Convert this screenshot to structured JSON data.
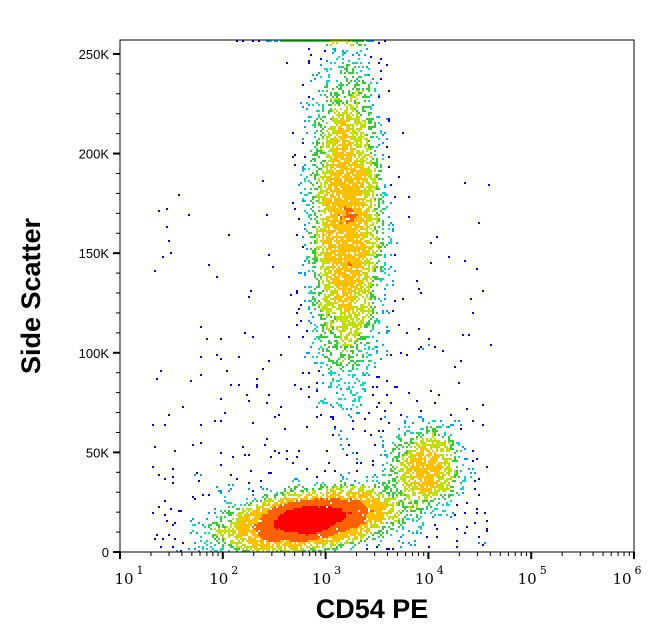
{
  "chart_data": {
    "type": "scatter",
    "subtype": "density-dot-plot",
    "xlabel": "CD54 PE",
    "ylabel": "Side Scatter",
    "x_scale": "log",
    "xlim": [
      10,
      1000000
    ],
    "ylim": [
      0,
      257000
    ],
    "x_ticks": [
      {
        "base": "10",
        "exp": "1"
      },
      {
        "base": "10",
        "exp": "2"
      },
      {
        "base": "10",
        "exp": "3"
      },
      {
        "base": "10",
        "exp": "4"
      },
      {
        "base": "10",
        "exp": "5"
      },
      {
        "base": "10",
        "exp": "6"
      }
    ],
    "y_ticks": [
      {
        "value": 0,
        "label": "0"
      },
      {
        "value": 50000,
        "label": "50K"
      },
      {
        "value": 100000,
        "label": "100K"
      },
      {
        "value": 150000,
        "label": "150K"
      },
      {
        "value": 200000,
        "label": "200K"
      },
      {
        "value": 250000,
        "label": "250K"
      }
    ],
    "grid": false,
    "colormap": [
      "#0000ff",
      "#00a0ff",
      "#00e0c0",
      "#30d030",
      "#c0e000",
      "#ffc000",
      "#ff6000",
      "#ff0000"
    ],
    "populations": [
      {
        "name_hint": "low SSC cluster",
        "x_log10_mean": 2.85,
        "x_log10_sd": 0.38,
        "y_mean": 16000,
        "y_sd": 6500,
        "slope_per_decade": 7000,
        "events": 6000
      },
      {
        "name_hint": "high SSC cluster",
        "x_log10_mean": 3.2,
        "x_log10_sd": 0.17,
        "y_mean": 165000,
        "y_sd": 38000,
        "slope_per_decade": 0,
        "events": 5000
      },
      {
        "name_hint": "mid SSC cluster",
        "x_log10_mean": 3.97,
        "x_log10_sd": 0.17,
        "y_mean": 42000,
        "y_sd": 10000,
        "slope_per_decade": 0,
        "events": 1100
      }
    ]
  }
}
